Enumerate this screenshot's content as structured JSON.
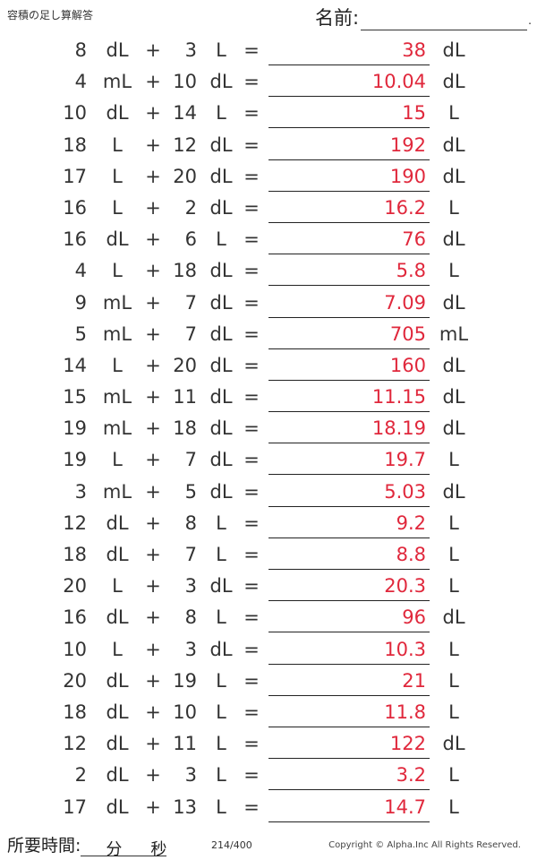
{
  "header": {
    "title": "容積の足し算解答",
    "name_label": "名前:",
    "name_dot": "."
  },
  "rows": [
    {
      "n1": "8",
      "u1": "dL",
      "op": "+",
      "n2": "3",
      "u2": "L",
      "eq": "=",
      "answer": "38",
      "unit": "dL"
    },
    {
      "n1": "4",
      "u1": "mL",
      "op": "+",
      "n2": "10",
      "u2": "dL",
      "eq": "=",
      "answer": "10.04",
      "unit": "dL"
    },
    {
      "n1": "10",
      "u1": "dL",
      "op": "+",
      "n2": "14",
      "u2": "L",
      "eq": "=",
      "answer": "15",
      "unit": "L"
    },
    {
      "n1": "18",
      "u1": "L",
      "op": "+",
      "n2": "12",
      "u2": "dL",
      "eq": "=",
      "answer": "192",
      "unit": "dL"
    },
    {
      "n1": "17",
      "u1": "L",
      "op": "+",
      "n2": "20",
      "u2": "dL",
      "eq": "=",
      "answer": "190",
      "unit": "dL"
    },
    {
      "n1": "16",
      "u1": "L",
      "op": "+",
      "n2": "2",
      "u2": "dL",
      "eq": "=",
      "answer": "16.2",
      "unit": "L"
    },
    {
      "n1": "16",
      "u1": "dL",
      "op": "+",
      "n2": "6",
      "u2": "L",
      "eq": "=",
      "answer": "76",
      "unit": "dL"
    },
    {
      "n1": "4",
      "u1": "L",
      "op": "+",
      "n2": "18",
      "u2": "dL",
      "eq": "=",
      "answer": "5.8",
      "unit": "L"
    },
    {
      "n1": "9",
      "u1": "mL",
      "op": "+",
      "n2": "7",
      "u2": "dL",
      "eq": "=",
      "answer": "7.09",
      "unit": "dL"
    },
    {
      "n1": "5",
      "u1": "mL",
      "op": "+",
      "n2": "7",
      "u2": "dL",
      "eq": "=",
      "answer": "705",
      "unit": "mL"
    },
    {
      "n1": "14",
      "u1": "L",
      "op": "+",
      "n2": "20",
      "u2": "dL",
      "eq": "=",
      "answer": "160",
      "unit": "dL"
    },
    {
      "n1": "15",
      "u1": "mL",
      "op": "+",
      "n2": "11",
      "u2": "dL",
      "eq": "=",
      "answer": "11.15",
      "unit": "dL"
    },
    {
      "n1": "19",
      "u1": "mL",
      "op": "+",
      "n2": "18",
      "u2": "dL",
      "eq": "=",
      "answer": "18.19",
      "unit": "dL"
    },
    {
      "n1": "19",
      "u1": "L",
      "op": "+",
      "n2": "7",
      "u2": "dL",
      "eq": "=",
      "answer": "19.7",
      "unit": "L"
    },
    {
      "n1": "3",
      "u1": "mL",
      "op": "+",
      "n2": "5",
      "u2": "dL",
      "eq": "=",
      "answer": "5.03",
      "unit": "dL"
    },
    {
      "n1": "12",
      "u1": "dL",
      "op": "+",
      "n2": "8",
      "u2": "L",
      "eq": "=",
      "answer": "9.2",
      "unit": "L"
    },
    {
      "n1": "18",
      "u1": "dL",
      "op": "+",
      "n2": "7",
      "u2": "L",
      "eq": "=",
      "answer": "8.8",
      "unit": "L"
    },
    {
      "n1": "20",
      "u1": "L",
      "op": "+",
      "n2": "3",
      "u2": "dL",
      "eq": "=",
      "answer": "20.3",
      "unit": "L"
    },
    {
      "n1": "16",
      "u1": "dL",
      "op": "+",
      "n2": "8",
      "u2": "L",
      "eq": "=",
      "answer": "96",
      "unit": "dL"
    },
    {
      "n1": "10",
      "u1": "L",
      "op": "+",
      "n2": "3",
      "u2": "dL",
      "eq": "=",
      "answer": "10.3",
      "unit": "L"
    },
    {
      "n1": "20",
      "u1": "dL",
      "op": "+",
      "n2": "19",
      "u2": "L",
      "eq": "=",
      "answer": "21",
      "unit": "L"
    },
    {
      "n1": "18",
      "u1": "dL",
      "op": "+",
      "n2": "10",
      "u2": "L",
      "eq": "=",
      "answer": "11.8",
      "unit": "L"
    },
    {
      "n1": "12",
      "u1": "dL",
      "op": "+",
      "n2": "11",
      "u2": "L",
      "eq": "=",
      "answer": "122",
      "unit": "dL"
    },
    {
      "n1": "2",
      "u1": "dL",
      "op": "+",
      "n2": "3",
      "u2": "L",
      "eq": "=",
      "answer": "3.2",
      "unit": "L"
    },
    {
      "n1": "17",
      "u1": "dL",
      "op": "+",
      "n2": "13",
      "u2": "L",
      "eq": "=",
      "answer": "14.7",
      "unit": "L"
    }
  ],
  "footer": {
    "time_label": "所要時間:",
    "minutes": "分",
    "seconds": "秒",
    "page": "214/400",
    "copyright": "Copyright © Alpha.Inc All Rights Reserved."
  },
  "colors": {
    "answer": "#e0283c",
    "text": "#333333"
  }
}
